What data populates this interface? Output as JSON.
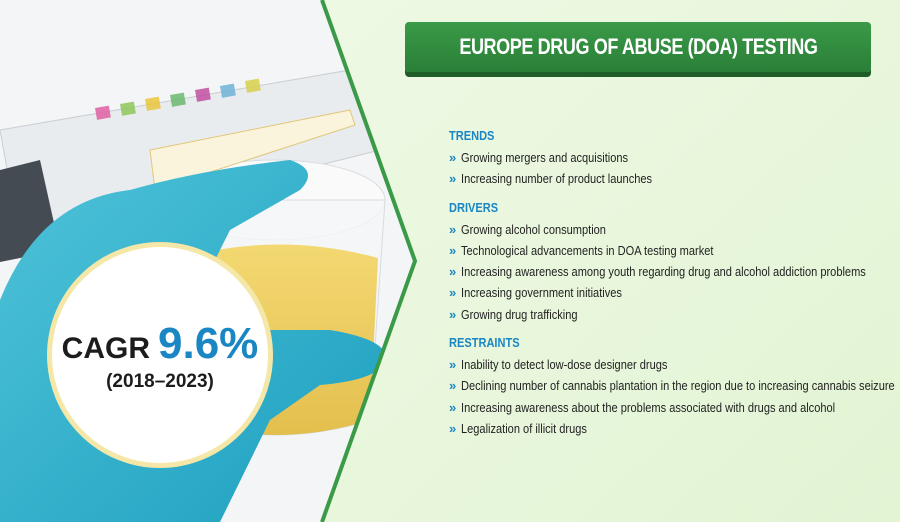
{
  "header": {
    "title": "EUROPE DRUG OF ABUSE (DOA) TESTING"
  },
  "cagr": {
    "label": "CAGR",
    "value": "9.6%",
    "period": "(2018–2023)"
  },
  "sections": [
    {
      "heading": "TRENDS",
      "items": [
        "Growing mergers and acquisitions",
        "Increasing number of product launches"
      ]
    },
    {
      "heading": "DRIVERS",
      "items": [
        "Growing alcohol consumption",
        "Technological advancements in DOA testing market",
        "Increasing awareness among youth regarding drug and alcohol addiction problems",
        "Increasing government initiatives",
        "Growing drug trafficking"
      ]
    },
    {
      "heading": "RESTRAINTS",
      "items": [
        "Inability to detect low-dose designer drugs",
        "Declining number of cannabis plantation in the region due to increasing cannabis seizure",
        "Increasing awareness about the problems associated with drugs and alcohol",
        "Legalization of illicit drugs"
      ]
    }
  ]
}
